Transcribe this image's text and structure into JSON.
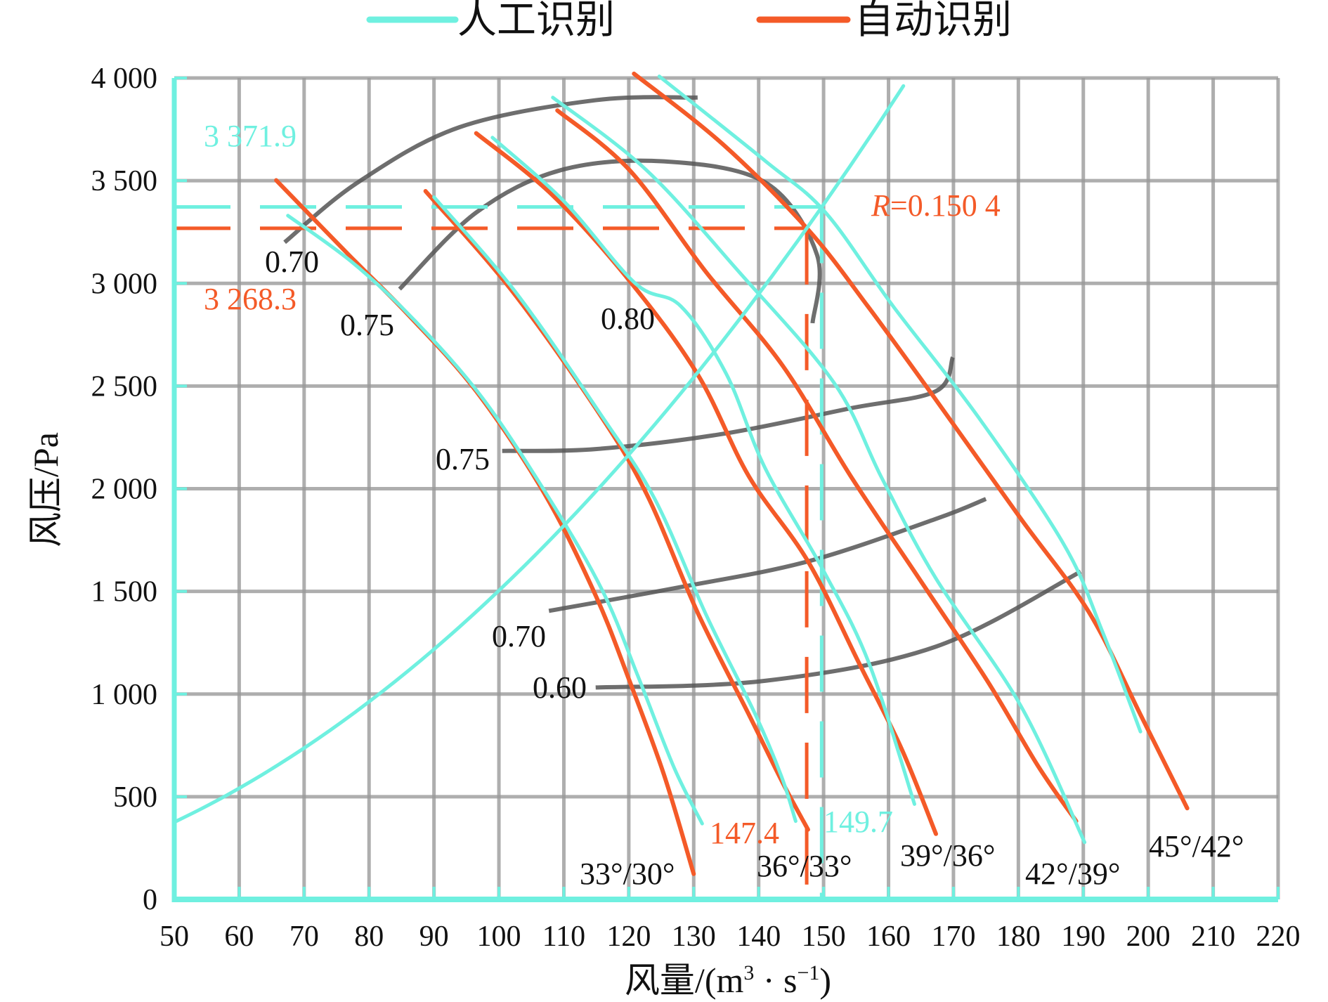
{
  "chart_data": {
    "type": "line",
    "title": "",
    "xlabel": "风量/(m³ · s⁻¹)",
    "xlabel_parts": {
      "main": "风量/(m",
      "sup1": "3",
      "mid": " · s",
      "sup2": "−1",
      "end": ")"
    },
    "ylabel": "风压/Pa",
    "xlim": [
      50,
      220
    ],
    "ylim": [
      0,
      4000
    ],
    "grid": true,
    "legend_position": "top-center",
    "xticks": [
      "50",
      "60",
      "70",
      "80",
      "90",
      "100",
      "110",
      "120",
      "130",
      "140",
      "150",
      "160",
      "170",
      "180",
      "190",
      "200",
      "210",
      "220"
    ],
    "yticks": [
      "0",
      "500",
      "1 000",
      "1 500",
      "2 000",
      "2 500",
      "3 000",
      "3 500",
      "4 000"
    ],
    "legend": [
      {
        "name": "人工识别",
        "color": "#6ff0e0"
      },
      {
        "name": "自动识别",
        "color": "#f45a28"
      }
    ],
    "colors": {
      "manual": "#6ff0e0",
      "auto": "#f45a28",
      "grid": "#9a9a9a",
      "efficiency": "#555555"
    },
    "series": [
      {
        "name": "自动识别 33°/30°",
        "group": "auto",
        "points": [
          [
            65.7,
            3502
          ],
          [
            76.9,
            3138
          ],
          [
            86,
            2848
          ],
          [
            96.5,
            2475
          ],
          [
            107,
            1977
          ],
          [
            114.9,
            1480
          ],
          [
            120.1,
            1065
          ],
          [
            125.4,
            609
          ],
          [
            130,
            124
          ]
        ]
      },
      {
        "name": "人工识别 33°/30°",
        "group": "manual",
        "points": [
          [
            67.5,
            3330
          ],
          [
            77.5,
            3100
          ],
          [
            87,
            2820
          ],
          [
            97.5,
            2440
          ],
          [
            108,
            1940
          ],
          [
            116,
            1500
          ],
          [
            121.5,
            1080
          ],
          [
            127,
            640
          ],
          [
            131.3,
            369
          ]
        ]
      },
      {
        "name": "自动识别 36°/33°",
        "group": "auto",
        "points": [
          [
            88.7,
            3449
          ],
          [
            101.8,
            2972
          ],
          [
            114.9,
            2392
          ],
          [
            122.7,
            1977
          ],
          [
            130.6,
            1397
          ],
          [
            138.5,
            900
          ],
          [
            143.7,
            568
          ],
          [
            147.6,
            340
          ]
        ]
      },
      {
        "name": "人工识别 36°/33°",
        "group": "manual",
        "points": [
          [
            90,
            3420
          ],
          [
            102.5,
            2960
          ],
          [
            115.5,
            2370
          ],
          [
            124,
            1950
          ],
          [
            132,
            1380
          ],
          [
            139.5,
            900
          ],
          [
            143.5,
            600
          ],
          [
            145.7,
            381
          ]
        ]
      },
      {
        "name": "自动识别 39°/36°",
        "group": "auto",
        "points": [
          [
            96.5,
            3731
          ],
          [
            108.3,
            3428
          ],
          [
            120.1,
            3013
          ],
          [
            130.6,
            2557
          ],
          [
            138.5,
            2060
          ],
          [
            147.6,
            1646
          ],
          [
            155.5,
            1148
          ],
          [
            162,
            734
          ],
          [
            167.3,
            319
          ]
        ]
      },
      {
        "name": "人工识别 39°/36°",
        "group": "manual",
        "points": [
          [
            99,
            3710
          ],
          [
            110,
            3400
          ],
          [
            121,
            3000
          ],
          [
            128,
            2889
          ],
          [
            135,
            2560
          ],
          [
            141,
            2100
          ],
          [
            150,
            1600
          ],
          [
            157,
            1150
          ],
          [
            164,
            464
          ]
        ]
      },
      {
        "name": "自动识别 42°/39°",
        "group": "auto",
        "points": [
          [
            109,
            3842
          ],
          [
            120.1,
            3552
          ],
          [
            131.9,
            3055
          ],
          [
            143.7,
            2599
          ],
          [
            154.2,
            2060
          ],
          [
            164.7,
            1563
          ],
          [
            175.2,
            1065
          ],
          [
            183,
            651
          ],
          [
            188.9,
            381
          ]
        ]
      },
      {
        "name": "人工识别 42°/39°",
        "group": "manual",
        "points": [
          [
            108.3,
            3905
          ],
          [
            122.7,
            3552
          ],
          [
            137,
            3055
          ],
          [
            151.6,
            2516
          ],
          [
            159,
            2050
          ],
          [
            167.3,
            1563
          ],
          [
            180.4,
            941
          ],
          [
            190.2,
            278
          ]
        ]
      },
      {
        "name": "自动识别 45°/42°",
        "group": "auto",
        "points": [
          [
            120.8,
            4021
          ],
          [
            134.5,
            3677
          ],
          [
            147.6,
            3262
          ],
          [
            156.8,
            2889
          ],
          [
            167.3,
            2433
          ],
          [
            180.4,
            1853
          ],
          [
            190.9,
            1397
          ],
          [
            198.8,
            900
          ],
          [
            206,
            444
          ]
        ]
      },
      {
        "name": "人工识别 45°/42°",
        "group": "manual",
        "points": [
          [
            124.7,
            4008
          ],
          [
            141.1,
            3594
          ],
          [
            150.3,
            3345
          ],
          [
            160.7,
            2889
          ],
          [
            173.8,
            2350
          ],
          [
            187,
            1729
          ],
          [
            193,
            1300
          ],
          [
            198.8,
            817
          ]
        ]
      },
      {
        "name": "人工识别 管网特性曲线 p=Rq²",
        "group": "manual",
        "R": 0.1504,
        "q_range": [
          50,
          162
        ]
      }
    ],
    "efficiency_curves": [
      {
        "label": "0.70",
        "points": [
          [
            67,
            3200
          ],
          [
            78.2,
            3490
          ],
          [
            93.9,
            3760
          ],
          [
            114.9,
            3892
          ],
          [
            130.6,
            3905
          ]
        ]
      },
      {
        "label": "0.80",
        "points": [
          [
            84.7,
            2972
          ],
          [
            96.5,
            3345
          ],
          [
            109.6,
            3552
          ],
          [
            125.4,
            3594
          ],
          [
            141.1,
            3490
          ],
          [
            149,
            3138
          ],
          [
            148.3,
            2806
          ]
        ]
      },
      {
        "label": "0.75",
        "points": [
          [
            100.5,
            2184
          ],
          [
            114.9,
            2193
          ],
          [
            134.5,
            2267
          ],
          [
            154.2,
            2392
          ],
          [
            167.3,
            2475
          ],
          [
            169.9,
            2640
          ]
        ]
      },
      {
        "label": "0.70",
        "points": [
          [
            107.7,
            1405
          ],
          [
            128,
            1521
          ],
          [
            147.6,
            1646
          ],
          [
            167.3,
            1853
          ],
          [
            175,
            1950
          ]
        ]
      },
      {
        "label": "0.60",
        "points": [
          [
            114.9,
            1032
          ],
          [
            141.1,
            1065
          ],
          [
            167.3,
            1231
          ],
          [
            189.6,
            1596
          ]
        ]
      }
    ],
    "reference_lines": [
      {
        "group": "manual",
        "q": 149.7,
        "p": 3371.9
      },
      {
        "group": "auto",
        "q": 147.4,
        "p": 3268.3
      }
    ],
    "annotations": {
      "manual_p": "3 371.9",
      "auto_p": "3 268.3",
      "R_italic": "R",
      "R_value": "=0.150 4",
      "auto_q": "147.4",
      "manual_q": "149.7",
      "eff_070_top": "0.70",
      "eff_075_top": "0.75",
      "eff_080": "0.80",
      "eff_075_mid": "0.75",
      "eff_070_low": "0.70",
      "eff_060": "0.60",
      "angle_1": "33°/30°",
      "angle_2": "36°/33°",
      "angle_3": "39°/36°",
      "angle_4": "42°/39°",
      "angle_5": "45°/42°"
    }
  }
}
